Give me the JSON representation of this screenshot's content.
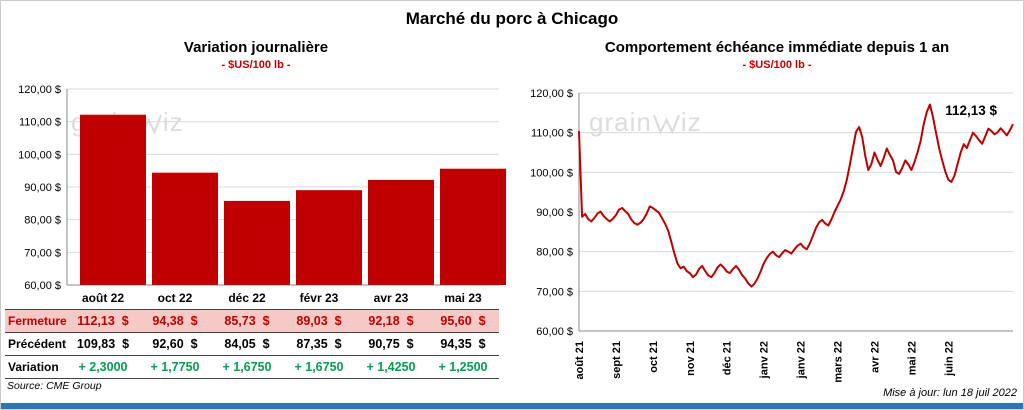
{
  "page": {
    "title": "Marché du porc à Chicago",
    "source": "Source: CME Group",
    "updated": "Mise à jour: lun 18 juil 2022"
  },
  "watermark": {
    "part1": "grain",
    "part2": "iz"
  },
  "colors": {
    "red": "#C00000",
    "grid": "#D9D9D9",
    "axis": "#898989",
    "green": "#00A050",
    "fermeture_bg": "#F5C9C6",
    "bottom_bar_blue": "#2E75B6",
    "watermark_gray": "#DCDCDC"
  },
  "left": {
    "title": "Variation journalière",
    "subtitle": "- $US/100 lb -",
    "table": {
      "rows": [
        {
          "label": "Fermeture",
          "values": [
            "112,13  $",
            "94,38  $",
            "85,73  $",
            "89,03  $",
            "92,18  $",
            "95,60  $"
          ]
        },
        {
          "label": "Précédent",
          "values": [
            "109,83  $",
            "92,60  $",
            "84,05  $",
            "87,35  $",
            "90,75  $",
            "94,35  $"
          ]
        },
        {
          "label": "Variation",
          "values": [
            "+ 2,3000",
            "+ 1,7750",
            "+ 1,6750",
            "+ 1,6750",
            "+ 1,4250",
            "+ 1,2500"
          ]
        }
      ]
    }
  },
  "right": {
    "title": "Comportement échéance immédiate depuis 1 an",
    "subtitle": "- $US/100 lb -",
    "annotation": "112,13 $"
  },
  "chart_data": [
    {
      "type": "bar",
      "title": "Variation journalière",
      "ylabel": "$US/100 lb",
      "categories": [
        "août 22",
        "oct 22",
        "déc 22",
        "févr 23",
        "avr 23",
        "mai 23"
      ],
      "values": [
        112.13,
        94.38,
        85.73,
        89.03,
        92.18,
        95.6
      ],
      "ylim": [
        60,
        120
      ],
      "ytick_labels": [
        "120,00 $",
        "110,00 $",
        "100,00 $",
        "90,00 $",
        "80,00 $",
        "70,00 $",
        "60,00 $"
      ],
      "bar_color": "#C00000",
      "grid": true,
      "legend": "none"
    },
    {
      "type": "line",
      "title": "Comportement échéance immédiate depuis 1 an",
      "ylabel": "$US/100 lb",
      "ylim": [
        60,
        120
      ],
      "ytick_labels": [
        "120,00 $",
        "110,00 $",
        "100,00 $",
        "90,00 $",
        "80,00 $",
        "70,00 $",
        "60,00 $"
      ],
      "x_tick_labels": [
        "août 21",
        "sept 21",
        "oct 21",
        "nov 21",
        "déc 21",
        "janv 22",
        "janv 22",
        "mars 22",
        "avr 22",
        "mai 22",
        "juin 22"
      ],
      "x_tick_indices": [
        0,
        12,
        24,
        36,
        48,
        60,
        72,
        84,
        96,
        108,
        120
      ],
      "last_value_label": "112,13 $",
      "last_value": 112.13,
      "line_color": "#C00000",
      "grid": true,
      "legend": "none",
      "values": [
        110.4,
        88.8,
        89.5,
        88.2,
        87.6,
        88.5,
        89.6,
        90.1,
        89.0,
        88.2,
        87.6,
        88.3,
        89.2,
        90.6,
        91.0,
        90.2,
        89.5,
        88.1,
        87.2,
        86.8,
        87.3,
        88.2,
        89.6,
        91.4,
        91.0,
        90.4,
        89.8,
        88.4,
        87.0,
        85.2,
        82.5,
        79.5,
        77.0,
        75.8,
        76.2,
        75.1,
        74.6,
        73.6,
        74.2,
        75.6,
        76.4,
        75.1,
        74.0,
        73.6,
        74.6,
        76.0,
        76.8,
        76.0,
        75.0,
        74.6,
        75.6,
        76.4,
        75.4,
        74.1,
        73.2,
        72.0,
        71.2,
        71.9,
        73.2,
        75.0,
        77.0,
        78.4,
        79.4,
        80.0,
        79.1,
        78.6,
        79.6,
        80.4,
        80.0,
        79.5,
        80.6,
        81.5,
        82.0,
        81.1,
        80.6,
        82.1,
        84.0,
        86.0,
        87.4,
        88.0,
        87.1,
        86.6,
        88.1,
        90.0,
        91.6,
        93.1,
        95.2,
        98.1,
        102.0,
        106.1,
        110.2,
        111.4,
        108.9,
        104.1,
        100.6,
        102.1,
        105.0,
        103.1,
        101.6,
        103.6,
        106.0,
        104.4,
        103.0,
        100.1,
        99.6,
        101.1,
        103.0,
        102.0,
        100.6,
        102.6,
        105.1,
        108.0,
        112.1,
        115.2,
        117.1,
        113.9,
        110.0,
        106.1,
        103.0,
        100.2,
        98.1,
        97.6,
        99.2,
        102.1,
        105.0,
        107.1,
        106.1,
        108.1,
        110.0,
        109.1,
        108.1,
        107.2,
        109.1,
        111.0,
        110.4,
        109.6,
        110.1,
        111.1,
        110.2,
        109.3,
        110.6,
        112.13
      ]
    }
  ]
}
